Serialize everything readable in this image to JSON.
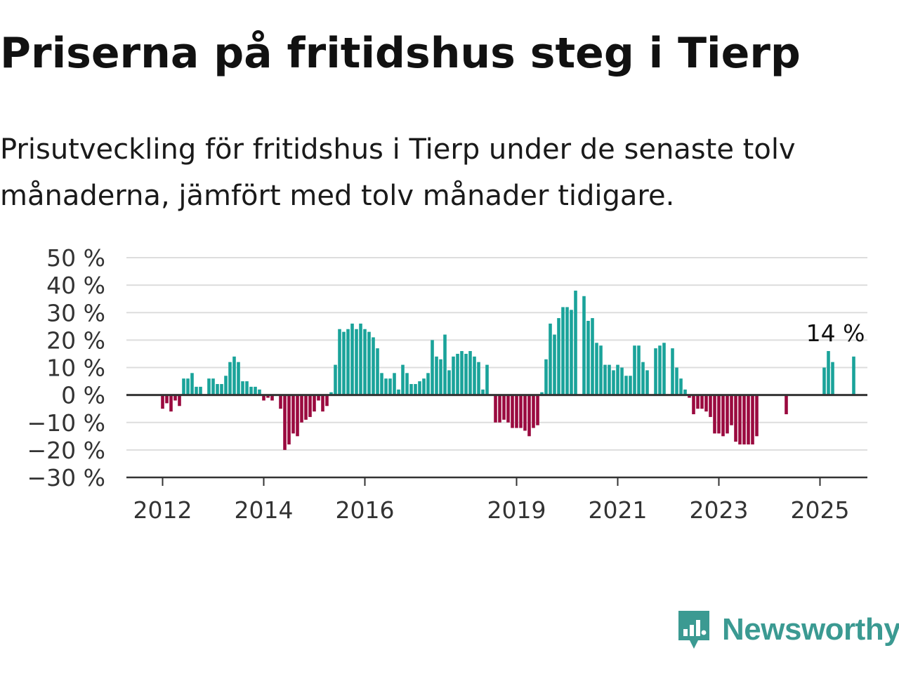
{
  "title": "Priserna på fritidshus steg i Tierp",
  "subtitle": "Prisutveckling för fritidshus i Tierp under de senaste tolv månaderna, jämfört med tolv månader tidigare.",
  "brand": {
    "name": "Newsworthy",
    "icon": "newsworthy-logo-icon",
    "color": "#3b9a92"
  },
  "colors": {
    "positive": "#1aa39a",
    "negative": "#9a0a3f",
    "grid": "#dddddd",
    "zero_line": "#333333"
  },
  "chart_data": {
    "type": "bar",
    "title": "",
    "xlabel": "",
    "ylabel": "",
    "ylim": [
      -30,
      50
    ],
    "y_ticks": [
      50,
      40,
      30,
      20,
      10,
      0,
      -10,
      -20,
      -30
    ],
    "y_tick_labels": [
      "50 %",
      "40 %",
      "30 %",
      "20 %",
      "10 %",
      "0 %",
      "−10 %",
      "−20 %",
      "−30 %"
    ],
    "x_ticks": [
      "2012-01",
      "2014-01",
      "2016-01",
      "2019-01",
      "2021-01",
      "2023-01",
      "2025-01"
    ],
    "x_tick_labels": [
      "2012",
      "2014",
      "2016",
      "2019",
      "2021",
      "2023",
      "2025"
    ],
    "grid": true,
    "annotation": {
      "label": "14 %",
      "x": "2025-05",
      "value": 14
    },
    "start_month": "2012-01",
    "values": [
      -5,
      -3,
      -6,
      -2,
      -4,
      6,
      6,
      8,
      3,
      3,
      null,
      6,
      6,
      4,
      4,
      7,
      12,
      14,
      12,
      5,
      5,
      3,
      3,
      2,
      -2,
      -1,
      -2,
      null,
      -5,
      -20,
      -18,
      -14,
      -15,
      -10,
      -9,
      -8,
      -6,
      -2,
      -6,
      -4,
      1,
      11,
      24,
      23,
      24,
      26,
      24,
      26,
      24,
      23,
      21,
      17,
      8,
      6,
      6,
      8,
      2,
      11,
      8,
      4,
      4,
      5,
      6,
      8,
      20,
      14,
      13,
      22,
      9,
      14,
      15,
      16,
      15,
      16,
      14,
      12,
      2,
      11,
      null,
      -10,
      -10,
      -9,
      -10,
      -12,
      -12,
      -12,
      -13,
      -15,
      -12,
      -11,
      1,
      13,
      26,
      22,
      28,
      32,
      32,
      31,
      38,
      null,
      36,
      27,
      28,
      19,
      18,
      11,
      11,
      9,
      11,
      10,
      7,
      7,
      18,
      18,
      12,
      9,
      null,
      17,
      18,
      19,
      null,
      17,
      10,
      6,
      2,
      -1,
      -7,
      -5,
      -5,
      -6,
      -8,
      -14,
      -14,
      -15,
      -14,
      -11,
      -17,
      -18,
      -18,
      -18,
      -18,
      -15,
      null,
      null,
      null,
      null,
      null,
      null,
      -7,
      null,
      null,
      null,
      null,
      null,
      null,
      null,
      null,
      10,
      16,
      12,
      null,
      null,
      null,
      null,
      14
    ]
  }
}
